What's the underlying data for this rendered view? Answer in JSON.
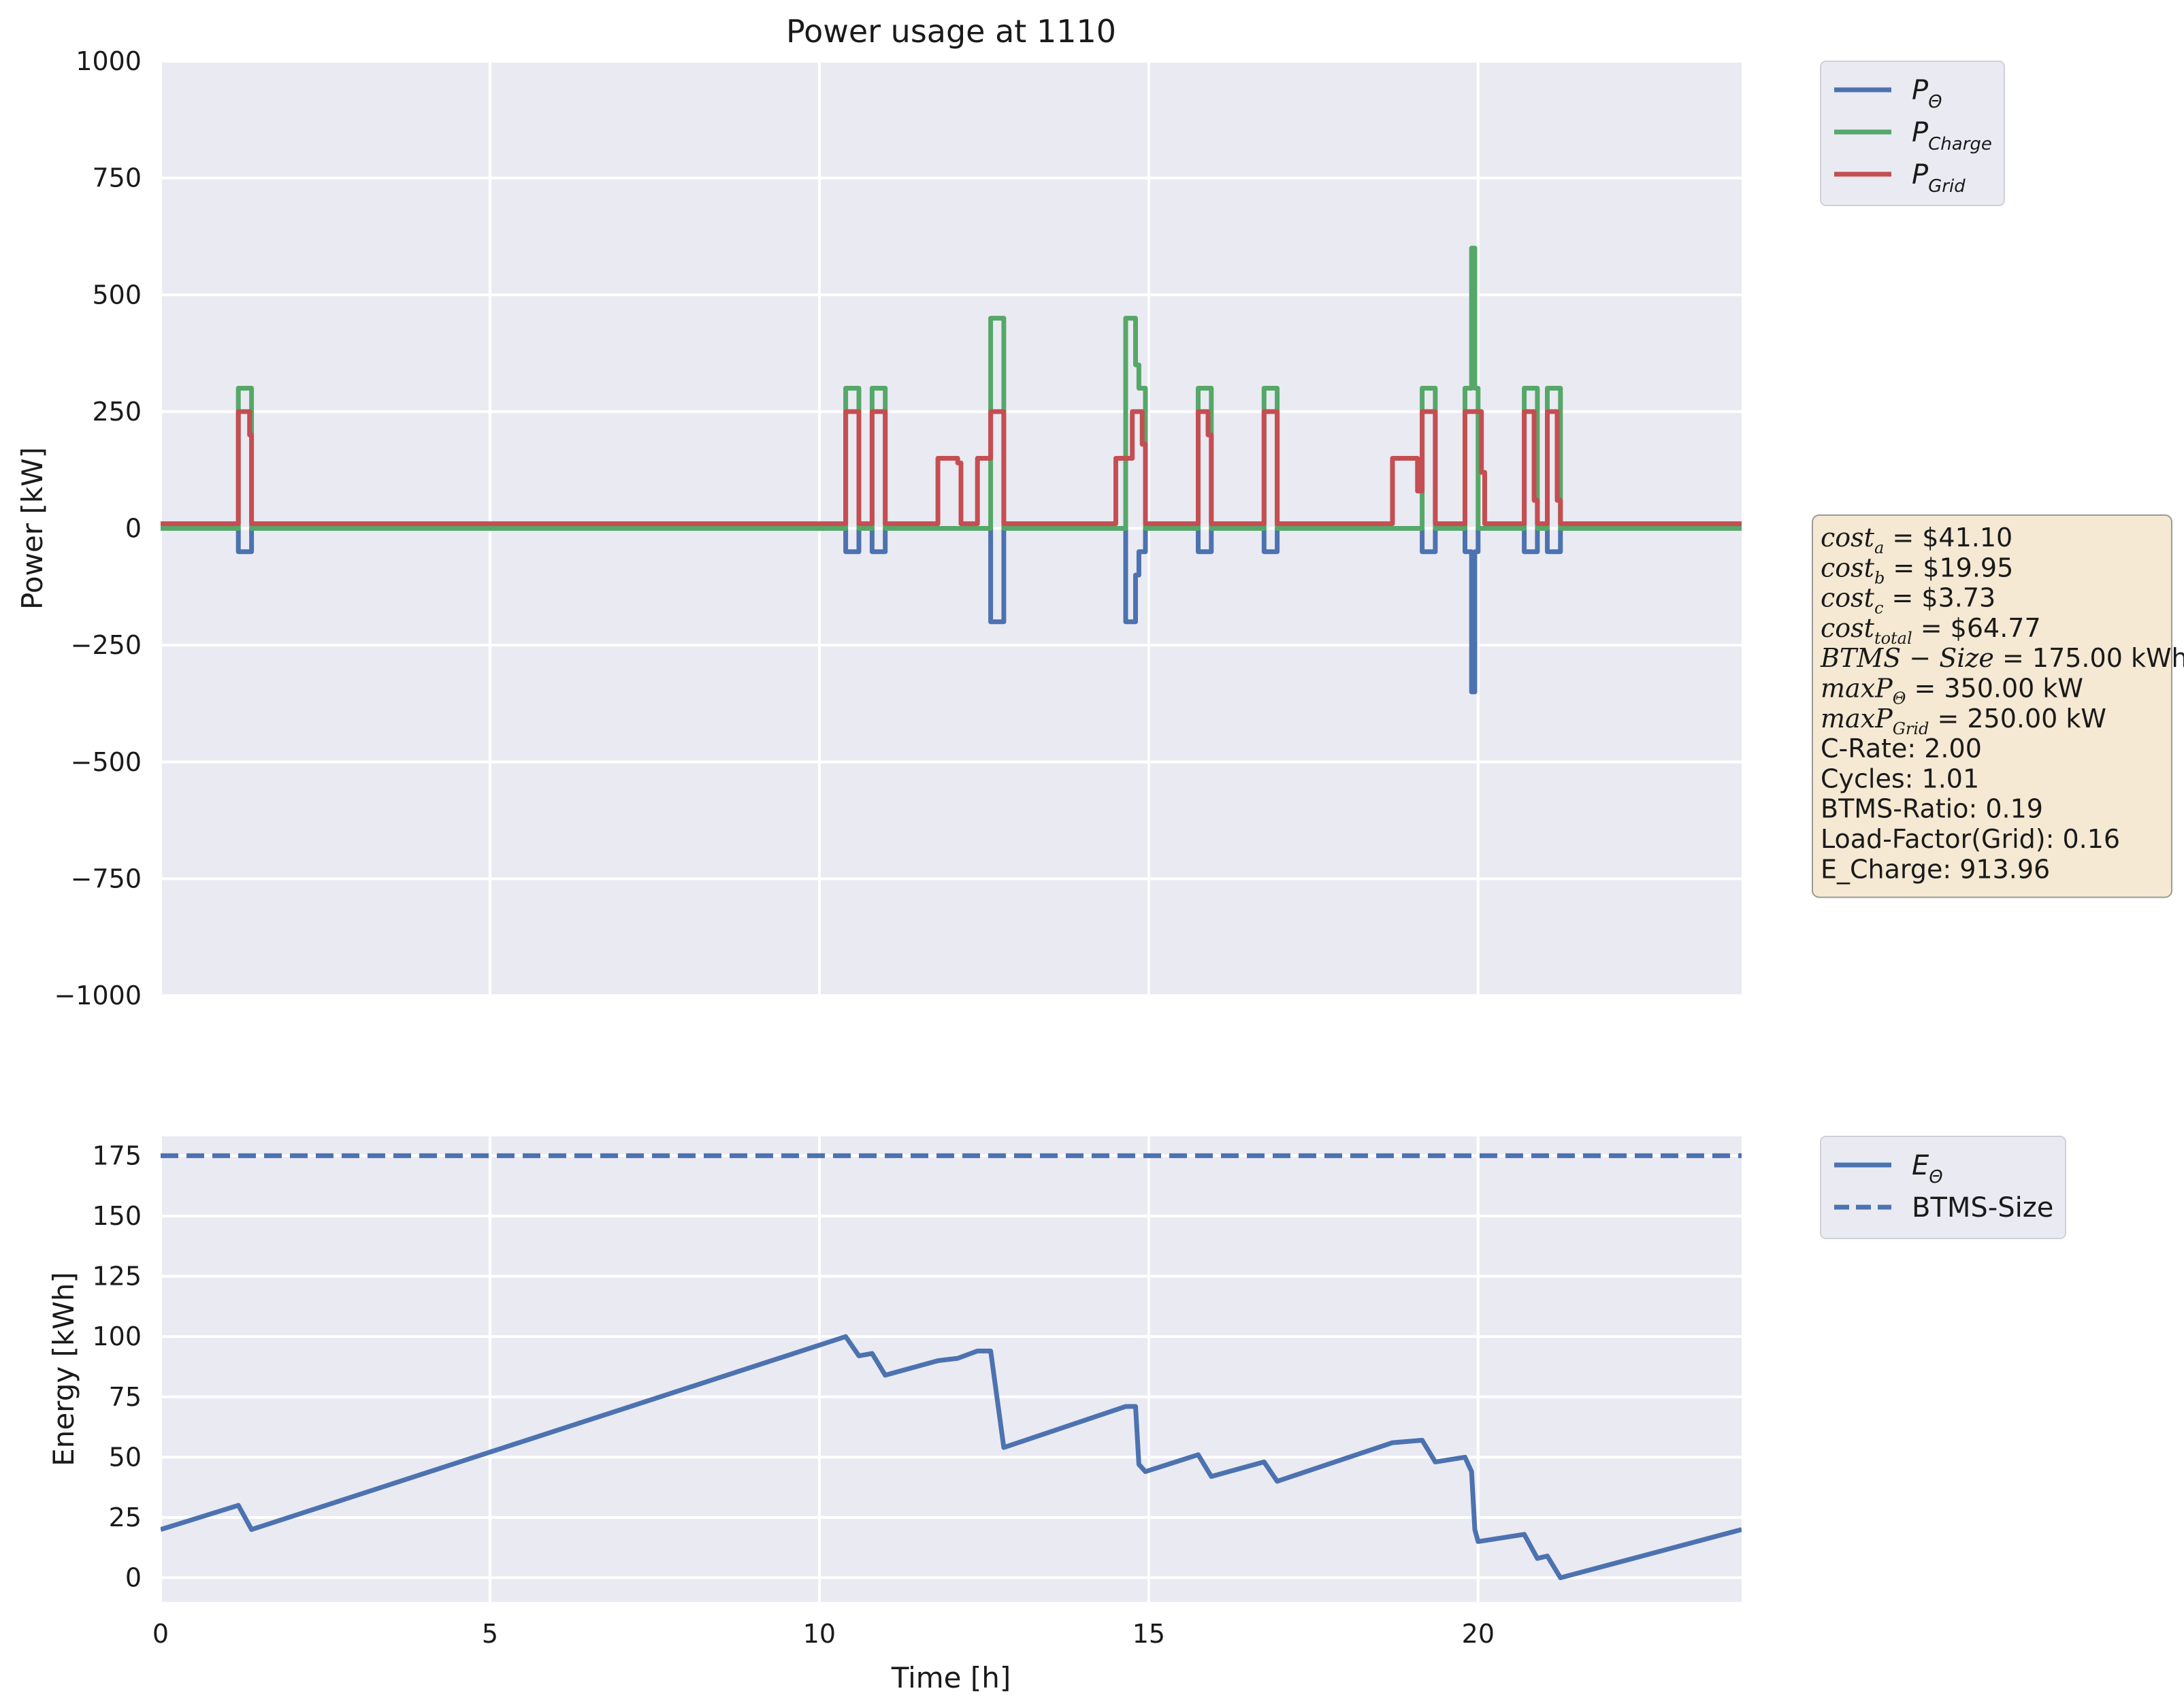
{
  "chart_data": [
    {
      "type": "line",
      "title": "Power usage at 1110",
      "ylabel": "Power [kW]",
      "xlim": [
        0,
        24
      ],
      "ylim": [
        -1000,
        1000
      ],
      "yticks": [
        1000,
        750,
        500,
        250,
        0,
        -250,
        -500,
        -750,
        -1000
      ],
      "ytick_labels": [
        "1000",
        "750",
        "500",
        "250",
        "0",
        "−250",
        "−500",
        "−750",
        "−1000"
      ],
      "grid": true,
      "legend_position": "outside upper right",
      "series": [
        {
          "name": "P_Θ",
          "color": "#4c72b0",
          "x": [
            0,
            1.18,
            1.18,
            1.38,
            1.38,
            10.4,
            10.4,
            10.6,
            10.6,
            10.8,
            10.8,
            11.0,
            11.0,
            12.6,
            12.6,
            12.8,
            12.8,
            14.65,
            14.65,
            14.8,
            14.8,
            14.85,
            14.85,
            14.95,
            14.95,
            15.75,
            15.75,
            15.95,
            15.95,
            16.75,
            16.75,
            16.95,
            16.95,
            19.15,
            19.15,
            19.35,
            19.35,
            19.8,
            19.8,
            19.9,
            19.9,
            19.95,
            19.95,
            20.0,
            20.0,
            20.7,
            20.7,
            20.9,
            20.9,
            21.05,
            21.05,
            21.25,
            21.25,
            24
          ],
          "y": [
            0,
            0,
            -50,
            -50,
            0,
            0,
            -50,
            -50,
            0,
            0,
            -50,
            -50,
            0,
            0,
            -200,
            -200,
            0,
            0,
            -200,
            -200,
            -100,
            -100,
            -50,
            -50,
            0,
            0,
            -50,
            -50,
            0,
            0,
            -50,
            -50,
            0,
            0,
            -50,
            -50,
            0,
            0,
            -50,
            -50,
            -350,
            -350,
            -50,
            -50,
            0,
            0,
            -50,
            -50,
            0,
            0,
            -50,
            -50,
            0,
            0
          ]
        },
        {
          "name": "P_Charge",
          "color": "#55a868",
          "x": [
            0,
            1.18,
            1.18,
            1.38,
            1.38,
            10.4,
            10.4,
            10.6,
            10.6,
            10.8,
            10.8,
            11.0,
            11.0,
            12.6,
            12.6,
            12.8,
            12.8,
            14.65,
            14.65,
            14.8,
            14.8,
            14.85,
            14.85,
            14.95,
            14.95,
            15.75,
            15.75,
            15.95,
            15.95,
            16.75,
            16.75,
            16.95,
            16.95,
            19.15,
            19.15,
            19.35,
            19.35,
            19.8,
            19.8,
            19.9,
            19.9,
            19.95,
            19.95,
            20.0,
            20.0,
            20.7,
            20.7,
            20.9,
            20.9,
            21.05,
            21.05,
            21.25,
            21.25,
            24
          ],
          "y": [
            0,
            0,
            300,
            300,
            0,
            0,
            300,
            300,
            0,
            0,
            300,
            300,
            0,
            0,
            450,
            450,
            0,
            0,
            450,
            450,
            350,
            350,
            300,
            300,
            0,
            0,
            300,
            300,
            0,
            0,
            300,
            300,
            0,
            0,
            300,
            300,
            0,
            0,
            300,
            300,
            600,
            600,
            300,
            300,
            0,
            0,
            300,
            300,
            0,
            0,
            300,
            300,
            0,
            0
          ]
        },
        {
          "name": "P_Grid",
          "color": "#c44e52",
          "x": [
            0,
            1.18,
            1.18,
            1.35,
            1.35,
            1.38,
            1.38,
            10.4,
            10.4,
            10.6,
            10.6,
            10.8,
            10.8,
            11.0,
            11.0,
            11.8,
            11.8,
            12.1,
            12.1,
            12.15,
            12.15,
            12.4,
            12.4,
            12.6,
            12.6,
            12.8,
            12.8,
            14.5,
            14.5,
            14.75,
            14.75,
            14.9,
            14.9,
            14.95,
            14.95,
            15.75,
            15.75,
            15.9,
            15.9,
            15.95,
            15.95,
            16.75,
            16.75,
            16.95,
            16.95,
            18.7,
            18.7,
            19.08,
            19.08,
            19.15,
            19.15,
            19.35,
            19.35,
            19.8,
            19.8,
            20.05,
            20.05,
            20.1,
            20.1,
            20.7,
            20.7,
            20.85,
            20.85,
            20.9,
            20.9,
            21.05,
            21.05,
            21.2,
            21.2,
            21.25,
            21.25,
            24
          ],
          "y": [
            10,
            10,
            250,
            250,
            200,
            200,
            10,
            10,
            250,
            250,
            10,
            10,
            250,
            250,
            10,
            10,
            150,
            150,
            140,
            140,
            10,
            10,
            150,
            150,
            250,
            250,
            10,
            10,
            150,
            150,
            250,
            250,
            180,
            180,
            10,
            10,
            250,
            250,
            200,
            200,
            10,
            10,
            250,
            250,
            10,
            10,
            150,
            150,
            80,
            80,
            250,
            250,
            10,
            10,
            250,
            250,
            120,
            120,
            10,
            10,
            250,
            250,
            60,
            60,
            10,
            10,
            250,
            250,
            60,
            60,
            10,
            10
          ]
        }
      ]
    },
    {
      "type": "line",
      "xlabel": "Time [h]",
      "ylabel": "Energy [kWh]",
      "xlim": [
        0,
        24
      ],
      "ylim": [
        -10,
        183
      ],
      "xticks": [
        0,
        5,
        10,
        15,
        20
      ],
      "yticks": [
        0,
        25,
        50,
        75,
        100,
        125,
        150,
        175
      ],
      "grid": true,
      "legend_position": "outside upper right",
      "series": [
        {
          "name": "E_Θ",
          "color": "#4c72b0",
          "x": [
            0,
            1.18,
            1.38,
            10.4,
            10.6,
            10.8,
            11.0,
            11.8,
            12.1,
            12.4,
            12.6,
            12.8,
            14.65,
            14.8,
            14.85,
            14.95,
            15.75,
            15.95,
            16.75,
            16.95,
            18.7,
            19.15,
            19.35,
            19.8,
            19.9,
            19.95,
            20.0,
            20.7,
            20.9,
            21.05,
            21.25,
            24
          ],
          "y": [
            20,
            30,
            20,
            100,
            92,
            93,
            84,
            90,
            91,
            94,
            94,
            54,
            71,
            71,
            47,
            44,
            51,
            42,
            48,
            40,
            56,
            57,
            48,
            50,
            44,
            20,
            15,
            18,
            8,
            9,
            0,
            20
          ]
        },
        {
          "name": "BTMS-Size",
          "color": "#4c72b0",
          "dashed": true,
          "x": [
            0,
            24
          ],
          "y": [
            175,
            175
          ]
        }
      ]
    }
  ],
  "info_box": {
    "lines": [
      {
        "base": "cost",
        "sub": "a",
        "rest": " = $41.10"
      },
      {
        "base": "cost",
        "sub": "b",
        "rest": " = $19.95"
      },
      {
        "base": "cost",
        "sub": "c",
        "rest": " = $3.73"
      },
      {
        "base": "cost",
        "sub": "total",
        "rest": " = $64.77"
      },
      {
        "base": "BTMS − Size",
        "sub": "",
        "rest": " = 175.00 kWh"
      },
      {
        "base": "maxP",
        "sub": "Θ",
        "rest": " = 350.00 kW"
      },
      {
        "base": "maxP",
        "sub": "Grid",
        "rest": " = 250.00 kW"
      },
      {
        "base": "C-Rate: 2.00",
        "sub": "",
        "rest": ""
      },
      {
        "base": "Cycles: 1.01",
        "sub": "",
        "rest": ""
      },
      {
        "base": "BTMS-Ratio: 0.19",
        "sub": "",
        "rest": ""
      },
      {
        "base": "Load-Factor(Grid): 0.16",
        "sub": "",
        "rest": ""
      },
      {
        "base": "E_Charge: 913.96",
        "sub": "",
        "rest": ""
      }
    ],
    "background": "#f5e9d3",
    "border": "#9a9a9a"
  },
  "legend_top": [
    {
      "base": "P",
      "sub": "Θ",
      "color": "#4c72b0",
      "dashed": false
    },
    {
      "base": "P",
      "sub": "Charge",
      "color": "#55a868",
      "dashed": false
    },
    {
      "base": "P",
      "sub": "Grid",
      "color": "#c44e52",
      "dashed": false
    }
  ],
  "legend_bottom": [
    {
      "base": "E",
      "sub": "Θ",
      "color": "#4c72b0",
      "dashed": false
    },
    {
      "base": "BTMS-Size",
      "sub": "",
      "color": "#4c72b0",
      "dashed": true
    }
  ],
  "style": {
    "axes_background": "#eaeaf2",
    "grid_color": "#ffffff"
  }
}
